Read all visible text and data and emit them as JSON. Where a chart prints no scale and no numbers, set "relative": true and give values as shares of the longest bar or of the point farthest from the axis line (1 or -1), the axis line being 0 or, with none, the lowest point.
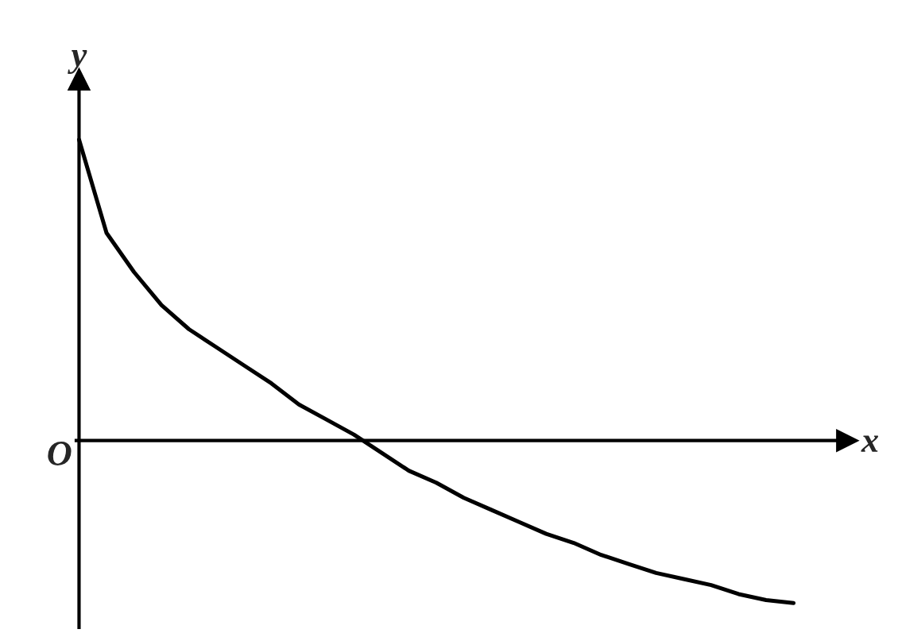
{
  "chart_data": {
    "type": "line",
    "relative": true,
    "xlabel": "x",
    "ylabel": "y",
    "annotations": [
      "O"
    ],
    "categories": [
      null,
      null,
      null,
      null,
      null,
      null,
      null,
      null,
      null,
      null,
      null,
      null,
      null,
      null,
      null,
      null,
      null,
      null,
      null,
      null,
      null,
      null,
      null,
      null,
      null,
      null,
      null
    ],
    "series": [
      {
        "color": "#000000",
        "values": [
          1,
          0.69,
          0.56,
          0.45,
          0.37,
          0.31,
          0.25,
          0.19,
          0.12,
          0.07,
          0.02,
          -0.04,
          -0.1,
          -0.14,
          -0.19,
          -0.23,
          -0.27,
          -0.31,
          -0.34,
          -0.38,
          -0.41,
          -0.44,
          -0.46,
          -0.48,
          -0.51,
          -0.53,
          -0.54
        ]
      }
    ]
  }
}
